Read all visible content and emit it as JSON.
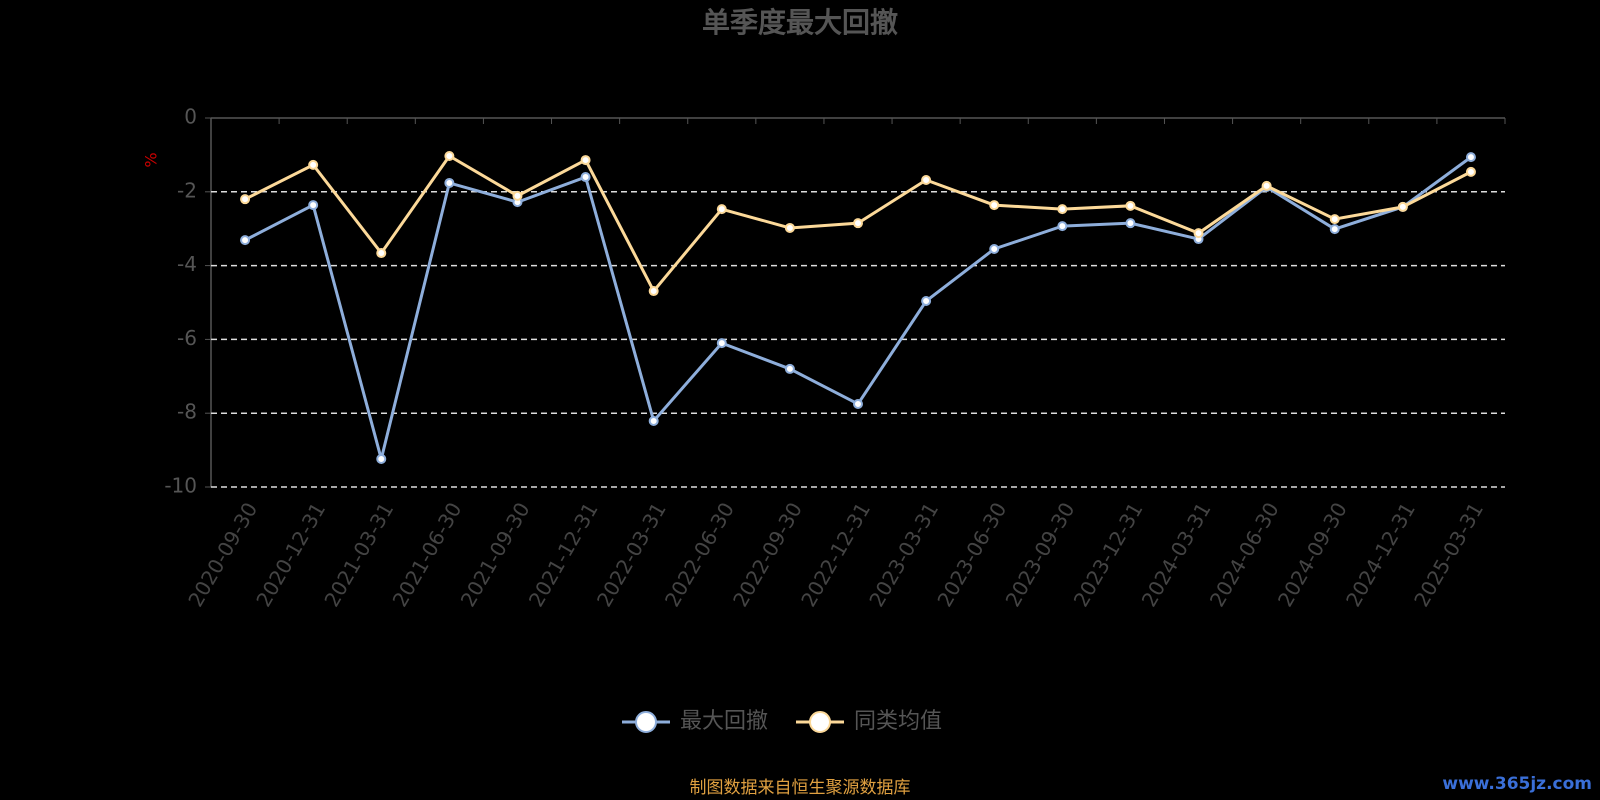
{
  "chart_data": {
    "type": "line",
    "title": "单季度最大回撤",
    "y_label": "%",
    "categories": [
      "2020-09-30",
      "2020-12-31",
      "2021-03-31",
      "2021-06-30",
      "2021-09-30",
      "2021-12-31",
      "2022-03-31",
      "2022-06-30",
      "2022-09-30",
      "2022-12-31",
      "2023-03-31",
      "2023-06-30",
      "2023-09-30",
      "2023-12-31",
      "2024-03-31",
      "2024-06-30",
      "2024-09-30",
      "2024-12-31",
      "2025-03-31"
    ],
    "series": [
      {
        "name": "最大回撤",
        "color": "#8eaedb",
        "values": [
          -3.31,
          -2.36,
          -9.24,
          -1.76,
          -2.28,
          -1.6,
          -8.21,
          -6.1,
          -6.8,
          -7.75,
          -4.96,
          -3.55,
          -2.93,
          -2.85,
          -3.28,
          -1.87,
          -3.01,
          -2.41,
          -1.06
        ]
      },
      {
        "name": "同类均值",
        "color": "#fcd999",
        "values": [
          -2.2,
          -1.27,
          -3.66,
          -1.03,
          -2.11,
          -1.14,
          -4.69,
          -2.47,
          -2.98,
          -2.85,
          -1.68,
          -2.36,
          -2.47,
          -2.38,
          -3.12,
          -1.84,
          -2.74,
          -2.41,
          -1.46
        ]
      }
    ],
    "ylim": [
      -10,
      0
    ],
    "yticks": [
      0,
      -2,
      -4,
      -6,
      -8,
      -10
    ],
    "grid": true,
    "legend": "bottom",
    "source": "制图数据来自恒生聚源数据库",
    "watermark": "www.365jz.com"
  }
}
